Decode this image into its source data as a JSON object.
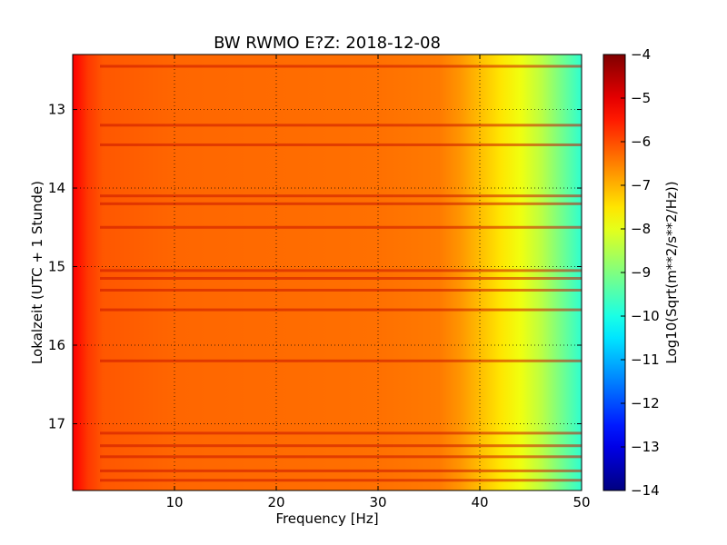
{
  "chart_data": {
    "type": "heatmap",
    "title": "BW RWMO E?Z: 2018-12-08",
    "xlabel": "Frequency [Hz]",
    "ylabel": "Lokalzeit (UTC + 1 Stunde)",
    "xlim": [
      0,
      50
    ],
    "ylim": [
      12.3,
      17.85
    ],
    "y_inverted": true,
    "x_ticks": [
      10,
      20,
      30,
      40,
      50
    ],
    "x_tick_labels": [
      "10",
      "20",
      "30",
      "40",
      "50"
    ],
    "y_ticks": [
      13,
      14,
      15,
      16,
      17
    ],
    "y_tick_labels": [
      "13",
      "14",
      "15",
      "16",
      "17"
    ],
    "grid": true,
    "colormap": "jet",
    "colorbar": {
      "label": "Log10(Sqrt(m**2/s**2/Hz))",
      "range": [
        -14,
        -4
      ],
      "ticks": [
        -4,
        -5,
        -6,
        -7,
        -8,
        -9,
        -10,
        -11,
        -12,
        -13,
        -14
      ],
      "tick_labels": [
        "−4",
        "−5",
        "−6",
        "−7",
        "−8",
        "−9",
        "−10",
        "−11",
        "−12",
        "−13",
        "−14"
      ]
    },
    "spectral_profile": {
      "frequency_hz": [
        0,
        0.5,
        1.5,
        3,
        10,
        20,
        30,
        36,
        38,
        40,
        42,
        44,
        46,
        48,
        50
      ],
      "log10_amplitude": [
        -5.2,
        -5.4,
        -5.8,
        -6.1,
        -6.25,
        -6.3,
        -6.35,
        -6.45,
        -6.7,
        -7.1,
        -7.5,
        -7.9,
        -8.4,
        -9.1,
        -9.8
      ]
    },
    "high_energy_times_hours": [
      12.45,
      13.2,
      13.45,
      14.1,
      14.2,
      14.5,
      15.05,
      15.15,
      15.3,
      15.55,
      16.2,
      17.12,
      17.28,
      17.42,
      17.6,
      17.72
    ]
  }
}
